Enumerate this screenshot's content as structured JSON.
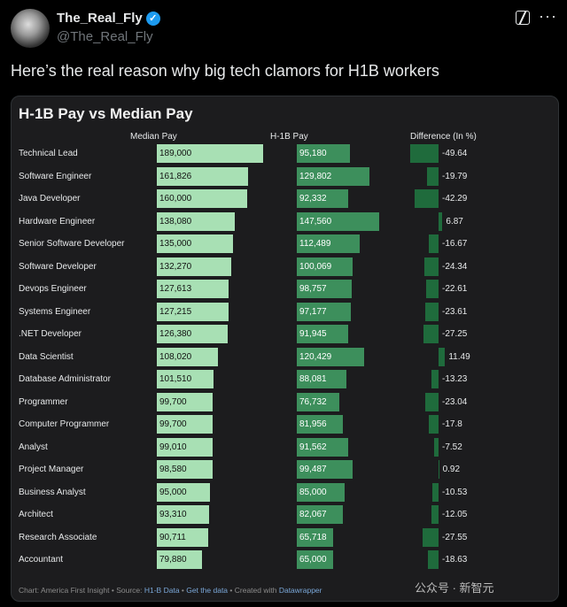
{
  "tweet": {
    "author_name": "The_Real_Fly",
    "handle": "@The_Real_Fly",
    "text": "Here’s the real reason why big tech clamors for H1B workers",
    "verified_icon": "✓",
    "more_icon": "···"
  },
  "chart": {
    "title": "H-1B Pay vs Median Pay",
    "col_median": "Median Pay",
    "col_h1b": "H-1B Pay",
    "col_diff": "Difference (In %)",
    "footer_prefix": "Chart: America First Insight • Source: ",
    "footer_source": "H1-B Data",
    "footer_sep1": " • ",
    "footer_get": "Get the data",
    "footer_sep2": " • Created with ",
    "footer_dw": "Datawrapper"
  },
  "watermark": "公众号 · 新智元",
  "chart_data": {
    "type": "table",
    "columns": [
      "Median Pay",
      "H-1B Pay",
      "Difference (In %)"
    ],
    "rows": [
      {
        "label": "Technical Lead",
        "median": 189000,
        "median_text": "189,000",
        "h1b": 95180,
        "h1b_text": "95,180",
        "diff": -49.64,
        "diff_text": "-49.64"
      },
      {
        "label": "Software Engineer",
        "median": 161826,
        "median_text": "161,826",
        "h1b": 129802,
        "h1b_text": "129,802",
        "diff": -19.79,
        "diff_text": "-19.79"
      },
      {
        "label": "Java Developer",
        "median": 160000,
        "median_text": "160,000",
        "h1b": 92332,
        "h1b_text": "92,332",
        "diff": -42.29,
        "diff_text": "-42.29"
      },
      {
        "label": "Hardware Engineer",
        "median": 138080,
        "median_text": "138,080",
        "h1b": 147560,
        "h1b_text": "147,560",
        "diff": 6.87,
        "diff_text": "6.87"
      },
      {
        "label": "Senior Software Developer",
        "median": 135000,
        "median_text": "135,000",
        "h1b": 112489,
        "h1b_text": "112,489",
        "diff": -16.67,
        "diff_text": "-16.67"
      },
      {
        "label": "Software Developer",
        "median": 132270,
        "median_text": "132,270",
        "h1b": 100069,
        "h1b_text": "100,069",
        "diff": -24.34,
        "diff_text": "-24.34"
      },
      {
        "label": "Devops Engineer",
        "median": 127613,
        "median_text": "127,613",
        "h1b": 98757,
        "h1b_text": "98,757",
        "diff": -22.61,
        "diff_text": "-22.61"
      },
      {
        "label": "Systems Engineer",
        "median": 127215,
        "median_text": "127,215",
        "h1b": 97177,
        "h1b_text": "97,177",
        "diff": -23.61,
        "diff_text": "-23.61"
      },
      {
        "label": ".NET Developer",
        "median": 126380,
        "median_text": "126,380",
        "h1b": 91945,
        "h1b_text": "91,945",
        "diff": -27.25,
        "diff_text": "-27.25"
      },
      {
        "label": "Data Scientist",
        "median": 108020,
        "median_text": "108,020",
        "h1b": 120429,
        "h1b_text": "120,429",
        "diff": 11.49,
        "diff_text": "11.49"
      },
      {
        "label": "Database Administrator",
        "median": 101510,
        "median_text": "101,510",
        "h1b": 88081,
        "h1b_text": "88,081",
        "diff": -13.23,
        "diff_text": "-13.23"
      },
      {
        "label": "Programmer",
        "median": 99700,
        "median_text": "99,700",
        "h1b": 76732,
        "h1b_text": "76,732",
        "diff": -23.04,
        "diff_text": "-23.04"
      },
      {
        "label": "Computer Programmer",
        "median": 99700,
        "median_text": "99,700",
        "h1b": 81956,
        "h1b_text": "81,956",
        "diff": -17.8,
        "diff_text": "-17.8"
      },
      {
        "label": "Analyst",
        "median": 99010,
        "median_text": "99,010",
        "h1b": 91562,
        "h1b_text": "91,562",
        "diff": -7.52,
        "diff_text": "-7.52"
      },
      {
        "label": "Project Manager",
        "median": 98580,
        "median_text": "98,580",
        "h1b": 99487,
        "h1b_text": "99,487",
        "diff": 0.92,
        "diff_text": "0.92"
      },
      {
        "label": "Business Analyst",
        "median": 95000,
        "median_text": "95,000",
        "h1b": 85000,
        "h1b_text": "85,000",
        "diff": -10.53,
        "diff_text": "-10.53"
      },
      {
        "label": "Architect",
        "median": 93310,
        "median_text": "93,310",
        "h1b": 82067,
        "h1b_text": "82,067",
        "diff": -12.05,
        "diff_text": "-12.05"
      },
      {
        "label": "Research Associate",
        "median": 90711,
        "median_text": "90,711",
        "h1b": 65718,
        "h1b_text": "65,718",
        "diff": -27.55,
        "diff_text": "-27.55"
      },
      {
        "label": "Accountant",
        "median": 79880,
        "median_text": "79,880",
        "h1b": 65000,
        "h1b_text": "65,000",
        "diff": -18.63,
        "diff_text": "-18.63"
      }
    ]
  }
}
